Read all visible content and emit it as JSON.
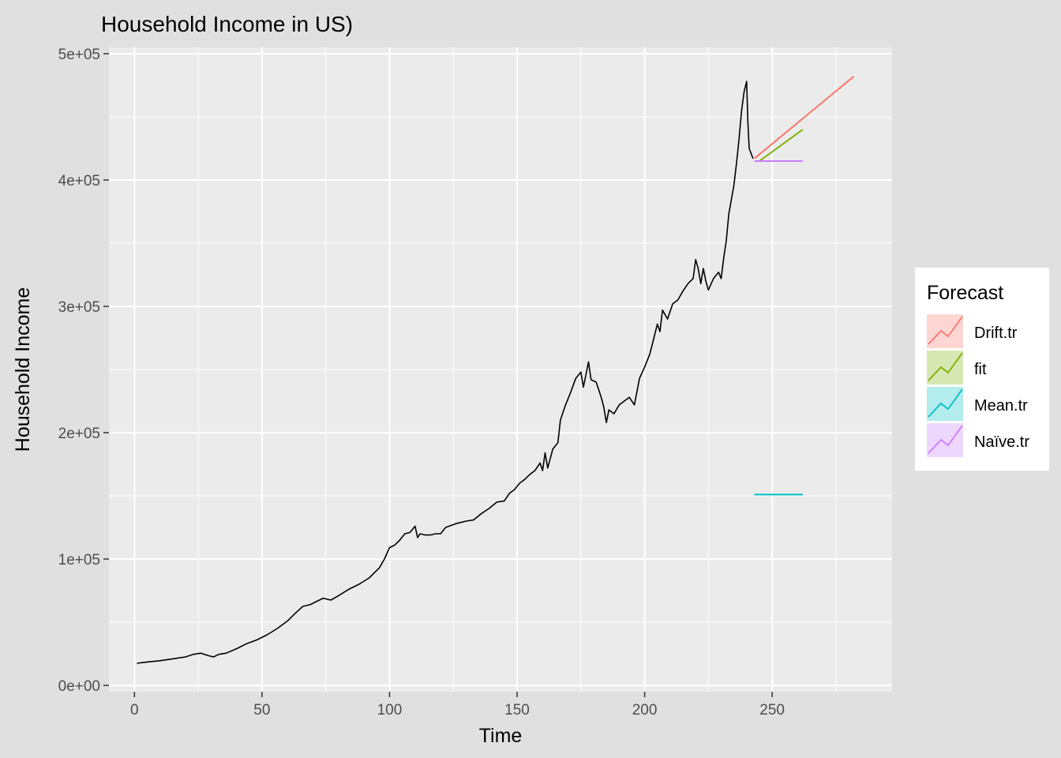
{
  "chart_data": {
    "type": "line",
    "title": "Household Income in US)",
    "xlabel": "Time",
    "ylabel": "Household Income",
    "xlim": [
      -10,
      297
    ],
    "ylim": [
      -5000,
      505000
    ],
    "x_ticks": [
      0,
      50,
      100,
      150,
      200,
      250
    ],
    "x_tick_labels": [
      "0",
      "50",
      "100",
      "150",
      "200",
      "250"
    ],
    "y_ticks": [
      0,
      100000,
      200000,
      300000,
      400000,
      500000
    ],
    "y_tick_labels": [
      "0e+00",
      "1e+05",
      "2e+05",
      "3e+05",
      "4e+05",
      "5e+05"
    ],
    "grid": true,
    "legend": {
      "title": "Forecast",
      "placement": "right",
      "entries": [
        {
          "label": "Drift.tr",
          "color": "#F8766D"
        },
        {
          "label": "fit",
          "color": "#7CAE00"
        },
        {
          "label": "Mean.tr",
          "color": "#00BFC4"
        },
        {
          "label": "Naïve.tr",
          "color": "#C77CFF"
        }
      ]
    },
    "history": {
      "color": "#000000",
      "points": [
        [
          1,
          17500
        ],
        [
          5,
          18500
        ],
        [
          10,
          19500
        ],
        [
          15,
          21000
        ],
        [
          20,
          22500
        ],
        [
          23,
          24500
        ],
        [
          26,
          25500
        ],
        [
          29,
          23500
        ],
        [
          31,
          22500
        ],
        [
          33,
          24500
        ],
        [
          36,
          25500
        ],
        [
          40,
          29000
        ],
        [
          44,
          33000
        ],
        [
          48,
          36000
        ],
        [
          52,
          40000
        ],
        [
          56,
          45000
        ],
        [
          60,
          51000
        ],
        [
          63,
          57000
        ],
        [
          66,
          62500
        ],
        [
          69,
          64000
        ],
        [
          71,
          66000
        ],
        [
          74,
          69000
        ],
        [
          77,
          67500
        ],
        [
          80,
          71000
        ],
        [
          84,
          76000
        ],
        [
          88,
          80000
        ],
        [
          92,
          85000
        ],
        [
          96,
          93000
        ],
        [
          98,
          100000
        ],
        [
          100,
          109000
        ],
        [
          102,
          111000
        ],
        [
          104,
          115000
        ],
        [
          106,
          120000
        ],
        [
          108,
          121000
        ],
        [
          110,
          126000
        ],
        [
          111,
          117000
        ],
        [
          112,
          120000
        ],
        [
          114,
          119000
        ],
        [
          116,
          119000
        ],
        [
          118,
          120000
        ],
        [
          120,
          120000
        ],
        [
          122,
          125000
        ],
        [
          126,
          128000
        ],
        [
          130,
          130000
        ],
        [
          133,
          131000
        ],
        [
          136,
          136000
        ],
        [
          139,
          140000
        ],
        [
          142,
          145000
        ],
        [
          145,
          146000
        ],
        [
          147,
          152000
        ],
        [
          149,
          155000
        ],
        [
          151,
          160000
        ],
        [
          153,
          163000
        ],
        [
          155,
          167000
        ],
        [
          157,
          170000
        ],
        [
          159,
          176000
        ],
        [
          160,
          170000
        ],
        [
          161,
          184000
        ],
        [
          162,
          172000
        ],
        [
          164,
          187000
        ],
        [
          166,
          192000
        ],
        [
          167,
          210000
        ],
        [
          169,
          222000
        ],
        [
          171,
          232000
        ],
        [
          173,
          243000
        ],
        [
          175,
          248000
        ],
        [
          176,
          236000
        ],
        [
          178,
          256000
        ],
        [
          179,
          242000
        ],
        [
          181,
          240000
        ],
        [
          183,
          228000
        ],
        [
          184,
          220000
        ],
        [
          185,
          208000
        ],
        [
          186,
          218000
        ],
        [
          188,
          215000
        ],
        [
          190,
          222000
        ],
        [
          192,
          225000
        ],
        [
          194,
          228000
        ],
        [
          196,
          222000
        ],
        [
          198,
          243000
        ],
        [
          200,
          252000
        ],
        [
          202,
          262000
        ],
        [
          203,
          270000
        ],
        [
          205,
          286000
        ],
        [
          206,
          280000
        ],
        [
          207,
          297000
        ],
        [
          209,
          290000
        ],
        [
          211,
          302000
        ],
        [
          213,
          305000
        ],
        [
          215,
          312000
        ],
        [
          217,
          318000
        ],
        [
          219,
          322000
        ],
        [
          220,
          337000
        ],
        [
          221,
          330000
        ],
        [
          222,
          318000
        ],
        [
          223,
          330000
        ],
        [
          224,
          320000
        ],
        [
          225,
          313000
        ],
        [
          227,
          322000
        ],
        [
          229,
          327000
        ],
        [
          230,
          322000
        ],
        [
          231,
          338000
        ],
        [
          232,
          352000
        ],
        [
          233,
          373000
        ],
        [
          235,
          396000
        ],
        [
          236,
          413000
        ],
        [
          237,
          432000
        ],
        [
          238,
          455000
        ],
        [
          239,
          470000
        ],
        [
          240,
          478000
        ],
        [
          240.5,
          445000
        ],
        [
          241,
          425000
        ],
        [
          242.5,
          417000
        ]
      ]
    },
    "series": [
      {
        "name": "Drift.tr",
        "color": "#F8766D",
        "x": [
          243,
          282
        ],
        "y": [
          417000,
          482000
        ]
      },
      {
        "name": "fit",
        "color": "#7CAE00",
        "x": [
          245,
          262
        ],
        "y": [
          415000,
          440000
        ]
      },
      {
        "name": "Mean.tr",
        "color": "#00BFC4",
        "x": [
          243,
          262
        ],
        "y": [
          151000,
          151000
        ]
      },
      {
        "name": "Naïve.tr",
        "color": "#C77CFF",
        "x": [
          243,
          262
        ],
        "y": [
          415000,
          415000
        ]
      }
    ]
  }
}
